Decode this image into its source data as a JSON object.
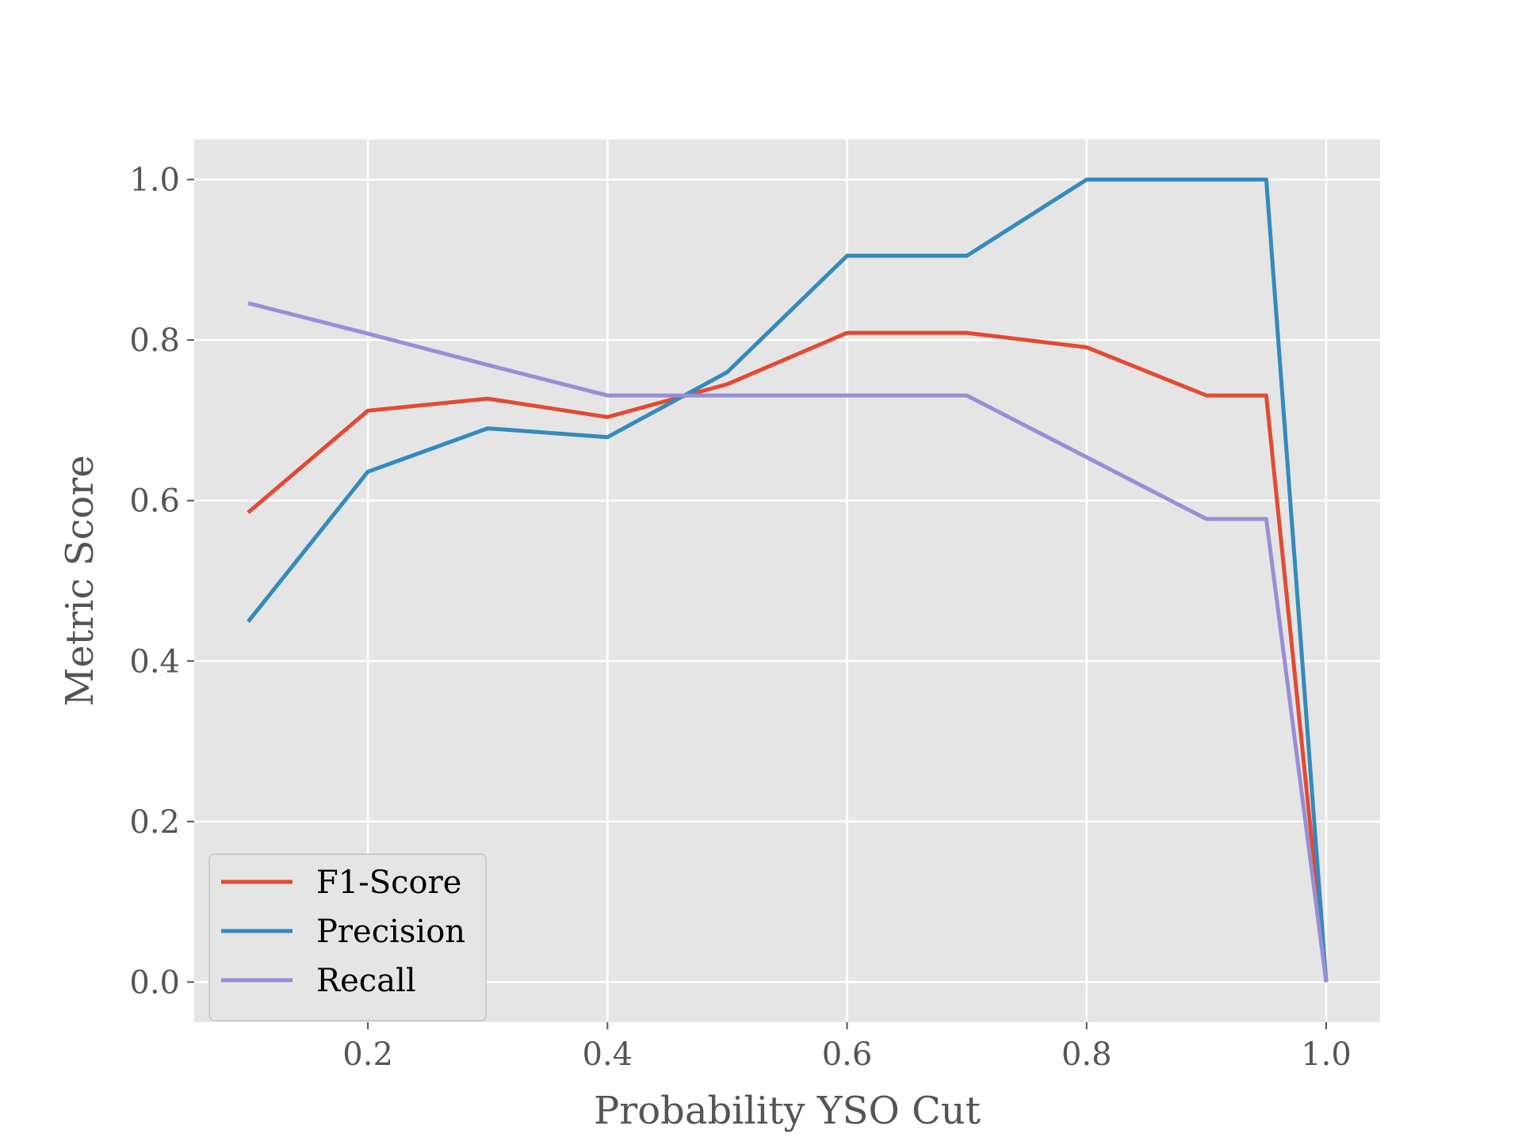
{
  "chart_data": {
    "type": "line",
    "title": "",
    "xlabel": "Probability YSO Cut",
    "ylabel": "Metric Score",
    "xlim": [
      0.055,
      1.045
    ],
    "ylim": [
      -0.05,
      1.05
    ],
    "xticks": [
      0.2,
      0.4,
      0.6,
      0.8,
      1.0
    ],
    "xtick_labels": [
      "0.2",
      "0.4",
      "0.6",
      "0.8",
      "1.0"
    ],
    "yticks": [
      0.0,
      0.2,
      0.4,
      0.6,
      0.8,
      1.0
    ],
    "ytick_labels": [
      "0.0",
      "0.2",
      "0.4",
      "0.6",
      "0.8",
      "1.0"
    ],
    "grid": true,
    "legend_position": "lower-left",
    "x": [
      0.1,
      0.2,
      0.3,
      0.4,
      0.5,
      0.6,
      0.7,
      0.8,
      0.9,
      0.95,
      1.0
    ],
    "series": [
      {
        "name": "F1-Score",
        "color": "#E24A33",
        "values": [
          0.585,
          0.712,
          0.727,
          0.704,
          0.745,
          0.809,
          0.809,
          0.791,
          0.731,
          0.731,
          0.0
        ]
      },
      {
        "name": "Precision",
        "color": "#348ABD",
        "values": [
          0.449,
          0.636,
          0.69,
          0.679,
          0.76,
          0.905,
          0.905,
          1.0,
          1.0,
          1.0,
          0.0
        ]
      },
      {
        "name": "Recall",
        "color": "#988ED5",
        "values": [
          0.846,
          0.808,
          0.769,
          0.731,
          0.731,
          0.731,
          0.731,
          0.654,
          0.577,
          0.577,
          0.0
        ]
      }
    ]
  },
  "style": {
    "plot_background": "#E5E5E5",
    "grid_color": "#FFFFFF",
    "text_color": "#555555"
  }
}
